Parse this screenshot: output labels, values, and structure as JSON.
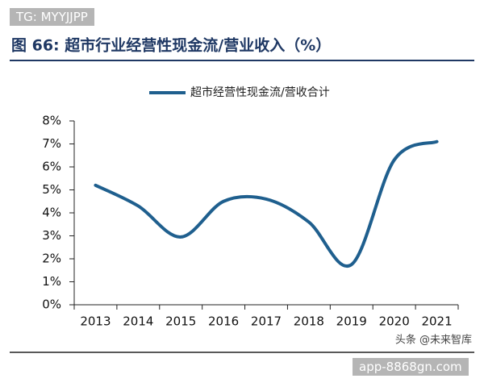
{
  "watermark_top": "TG: MYYJJPP",
  "chart_data": {
    "type": "line",
    "title": "图 66: 超市行业经营性现金流/营业收入（%）",
    "categories": [
      "2013",
      "2014",
      "2015",
      "2016",
      "2017",
      "2018",
      "2019",
      "2020",
      "2021"
    ],
    "series": [
      {
        "name": "超市经营性现金流/营收合计",
        "color": "#1f5f8e",
        "values": [
          5.2,
          4.3,
          2.95,
          4.5,
          4.6,
          3.6,
          1.75,
          6.3,
          7.1
        ]
      }
    ],
    "ylim": [
      0,
      8
    ],
    "yticks": [
      {
        "value": 0,
        "label": "0%"
      },
      {
        "value": 1,
        "label": "1%"
      },
      {
        "value": 2,
        "label": "2%"
      },
      {
        "value": 3,
        "label": "3%"
      },
      {
        "value": 4,
        "label": "4%"
      },
      {
        "value": 5,
        "label": "5%"
      },
      {
        "value": 6,
        "label": "6%"
      },
      {
        "value": 7,
        "label": "7%"
      },
      {
        "value": 8,
        "label": "8%"
      }
    ]
  },
  "source": "头条 @未来智库",
  "watermark_bottom": "app-8868gn.com"
}
